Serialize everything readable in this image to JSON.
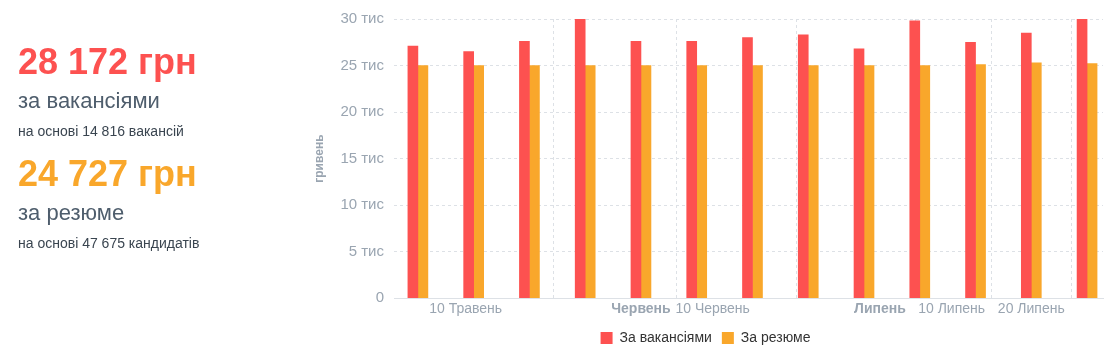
{
  "chart_data": [
    {
      "type": "other",
      "annotations": [
        "28 172 грн",
        "за вакансіями",
        "на основі 14 816 вакансій",
        "24 727 грн",
        "за резюме",
        "на основі 47 675 кандидатів"
      ]
    },
    {
      "type": "bar",
      "ylabel": "гривень",
      "x": [
        "--05-04",
        "--05-11",
        "--05-18",
        "--05-25",
        "--06-01",
        "--06-08",
        "--06-15",
        "--06-22",
        "--06-29",
        "--07-06",
        "--07-13",
        "--07-20",
        "--07-27"
      ],
      "series": [
        {
          "name": "За вакансіями",
          "color": "#fd5150",
          "values": [
            27.1,
            26.5,
            27.6,
            30,
            27.6,
            27.6,
            28,
            28.3,
            26.8,
            29.8,
            27.5,
            28.5,
            30
          ]
        },
        {
          "name": "За резюме",
          "color": "#f9a72b",
          "values": [
            25,
            25,
            25,
            25,
            25,
            25,
            25,
            25,
            25,
            25,
            25.1,
            25.3,
            25.2
          ]
        }
      ],
      "xlim": [
        "--05-01",
        "--07-29"
      ],
      "xticks": [
        {
          "value": "--05-10",
          "label": "10 Травень"
        },
        {
          "value": "--06-01",
          "label": "Червень"
        },
        {
          "value": "--06-10",
          "label": "10 Червень"
        },
        {
          "value": "--07-01",
          "label": "Липень"
        },
        {
          "value": "--07-10",
          "label": "10 Липень"
        },
        {
          "value": "--07-20",
          "label": "20 Липень"
        }
      ],
      "ylim": [
        0,
        30
      ],
      "yticks": [
        0,
        {
          "value": 5,
          "label": "5 тис"
        },
        {
          "value": 10,
          "label": "10 тис"
        },
        {
          "value": 15,
          "label": "15 тис"
        },
        {
          "value": 20,
          "label": "20 тис"
        },
        {
          "value": 25,
          "label": "25 тис"
        },
        {
          "value": 30,
          "label": "30 тис"
        }
      ],
      "grid": true,
      "legend": "bottom"
    }
  ]
}
